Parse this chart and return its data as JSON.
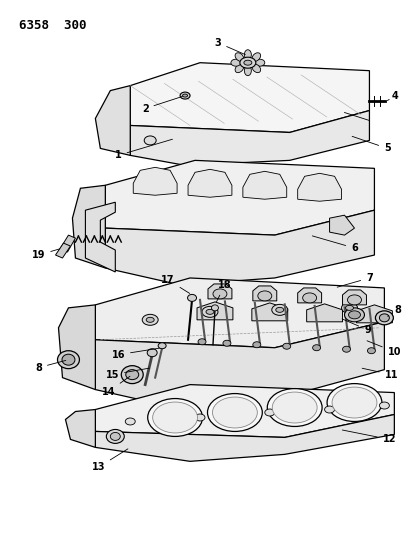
{
  "title": "6358  300",
  "bg_color": "#ffffff",
  "line_color": "#000000",
  "fig_width": 4.1,
  "fig_height": 5.33,
  "dpi": 100,
  "label_fs": 7,
  "title_fs": 9,
  "lw": 0.8
}
